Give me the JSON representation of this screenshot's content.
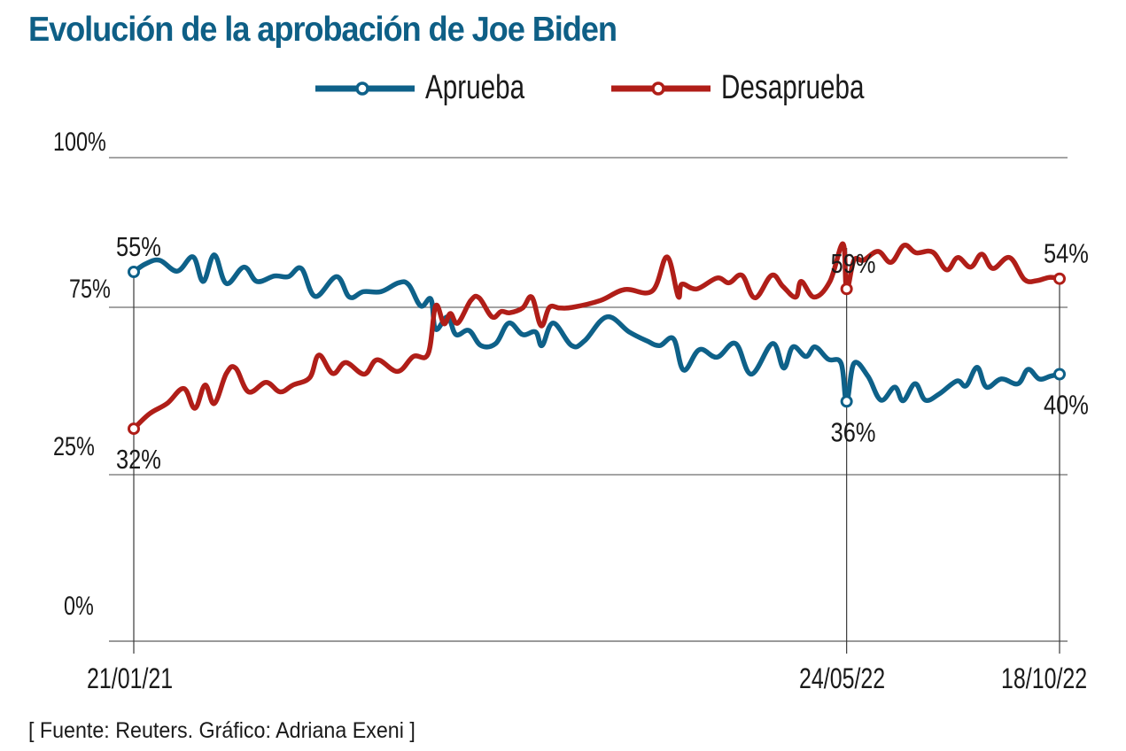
{
  "title": "Evolución de la aprobación de Joe Biden",
  "source": "[ Fuente: Reuters. Gráfico: Adriana Exeni ]",
  "colors": {
    "title": "#0e5f86",
    "approve": "#0e6189",
    "disapprove": "#b01e18",
    "grid": "#7a7a7a",
    "text": "#1a1a1a"
  },
  "chart_data": {
    "type": "line",
    "title": "Evolución de la aprobación de Joe Biden",
    "xlabel": "",
    "ylabel": "",
    "grid": true,
    "legend_position": "top-center",
    "y_tick_labels": [
      "100%",
      "75%",
      "25%",
      "0%"
    ],
    "x_tick_labels": [
      "21/01/21",
      "24/05/22",
      "18/10/22"
    ],
    "x_ticks": [
      0,
      0.77,
      1
    ],
    "x_domain": [
      "21/01/21",
      "18/10/22"
    ],
    "note": "x given as fraction of time span 21/01/21 → 18/10/22; y values in percent, estimated from curve between labeled points",
    "series": [
      {
        "name": "Aprueba",
        "color": "#0e6189",
        "x": [
          0,
          0.013,
          0.028,
          0.047,
          0.064,
          0.075,
          0.087,
          0.1,
          0.119,
          0.133,
          0.152,
          0.167,
          0.181,
          0.196,
          0.219,
          0.233,
          0.248,
          0.267,
          0.286,
          0.297,
          0.31,
          0.321,
          0.326,
          0.339,
          0.348,
          0.362,
          0.375,
          0.391,
          0.405,
          0.42,
          0.434,
          0.441,
          0.453,
          0.473,
          0.487,
          0.511,
          0.535,
          0.554,
          0.568,
          0.583,
          0.594,
          0.611,
          0.63,
          0.65,
          0.667,
          0.69,
          0.702,
          0.712,
          0.726,
          0.736,
          0.75,
          0.764,
          0.77,
          0.778,
          0.793,
          0.807,
          0.822,
          0.831,
          0.844,
          0.855,
          0.87,
          0.889,
          0.899,
          0.911,
          0.921,
          0.937,
          0.955,
          0.966,
          0.978,
          0.99,
          1
        ],
        "values": [
          55,
          56.2,
          56.7,
          55.1,
          57.2,
          53.6,
          57.5,
          53.3,
          55.7,
          53.6,
          54.4,
          54.3,
          55.5,
          51.4,
          54.3,
          51.3,
          52.1,
          52.1,
          53.4,
          53.1,
          50,
          51,
          46.6,
          48.4,
          45.8,
          46.4,
          44.2,
          44.5,
          47.5,
          45.8,
          46.2,
          44.2,
          47.5,
          44.2,
          44.9,
          48.4,
          46.2,
          44.9,
          44.2,
          45.2,
          40.6,
          43.6,
          42.5,
          44.5,
          40,
          44.5,
          40.9,
          44,
          42.6,
          44,
          42.2,
          41.6,
          36,
          41.6,
          39.7,
          36.2,
          38.1,
          36.1,
          38.6,
          36.2,
          37.1,
          39,
          38.3,
          41,
          38.1,
          39.3,
          38.6,
          40.7,
          39.3,
          39.7,
          40
        ]
      },
      {
        "name": "Desaprueba",
        "color": "#b01e18",
        "x": [
          0,
          0.017,
          0.036,
          0.054,
          0.066,
          0.077,
          0.087,
          0.1,
          0.11,
          0.124,
          0.143,
          0.158,
          0.172,
          0.19,
          0.2,
          0.215,
          0.229,
          0.249,
          0.263,
          0.285,
          0.302,
          0.318,
          0.326,
          0.335,
          0.342,
          0.35,
          0.364,
          0.373,
          0.387,
          0.397,
          0.406,
          0.42,
          0.43,
          0.44,
          0.449,
          0.46,
          0.474,
          0.504,
          0.53,
          0.56,
          0.576,
          0.588,
          0.592,
          0.608,
          0.63,
          0.643,
          0.657,
          0.671,
          0.689,
          0.701,
          0.715,
          0.721,
          0.735,
          0.752,
          0.766,
          0.77,
          0.778,
          0.788,
          0.804,
          0.818,
          0.832,
          0.845,
          0.863,
          0.878,
          0.89,
          0.904,
          0.916,
          0.928,
          0.946,
          0.962,
          0.975,
          0.989,
          1
        ],
        "values": [
          32,
          34.2,
          35.7,
          37.9,
          35,
          38.4,
          35.7,
          40.1,
          40.9,
          37.4,
          38.8,
          37.4,
          38.4,
          39.5,
          42.8,
          40.1,
          41.7,
          40,
          42.1,
          40.4,
          42.6,
          43,
          50,
          47.4,
          48.9,
          47.5,
          50.8,
          51.2,
          48.4,
          49.2,
          49,
          49.7,
          51.3,
          47.1,
          49.8,
          49.7,
          49.8,
          50.8,
          52.4,
          52.2,
          57.2,
          51.4,
          53.2,
          52.5,
          54.1,
          53.4,
          54.5,
          51.2,
          54.5,
          52.9,
          51.3,
          53.6,
          51.3,
          53.6,
          59.1,
          52.5,
          56.7,
          56.7,
          58,
          56.4,
          58.9,
          57.8,
          57.9,
          55.3,
          57.1,
          55.7,
          57.6,
          55.5,
          57.1,
          53.9,
          53.7,
          54.2,
          54
        ]
      }
    ],
    "annotations": [
      {
        "series": "Aprueba",
        "date": "21/01/21",
        "label": "55%"
      },
      {
        "series": "Desaprueba",
        "date": "21/01/21",
        "label": "32%"
      },
      {
        "series": "Desaprueba",
        "date": "24/05/22",
        "label": "59%"
      },
      {
        "series": "Aprueba",
        "date": "24/05/22",
        "label": "36%"
      },
      {
        "series": "Desaprueba",
        "date": "18/10/22",
        "label": "54%"
      },
      {
        "series": "Aprueba",
        "date": "18/10/22",
        "label": "40%"
      }
    ]
  }
}
